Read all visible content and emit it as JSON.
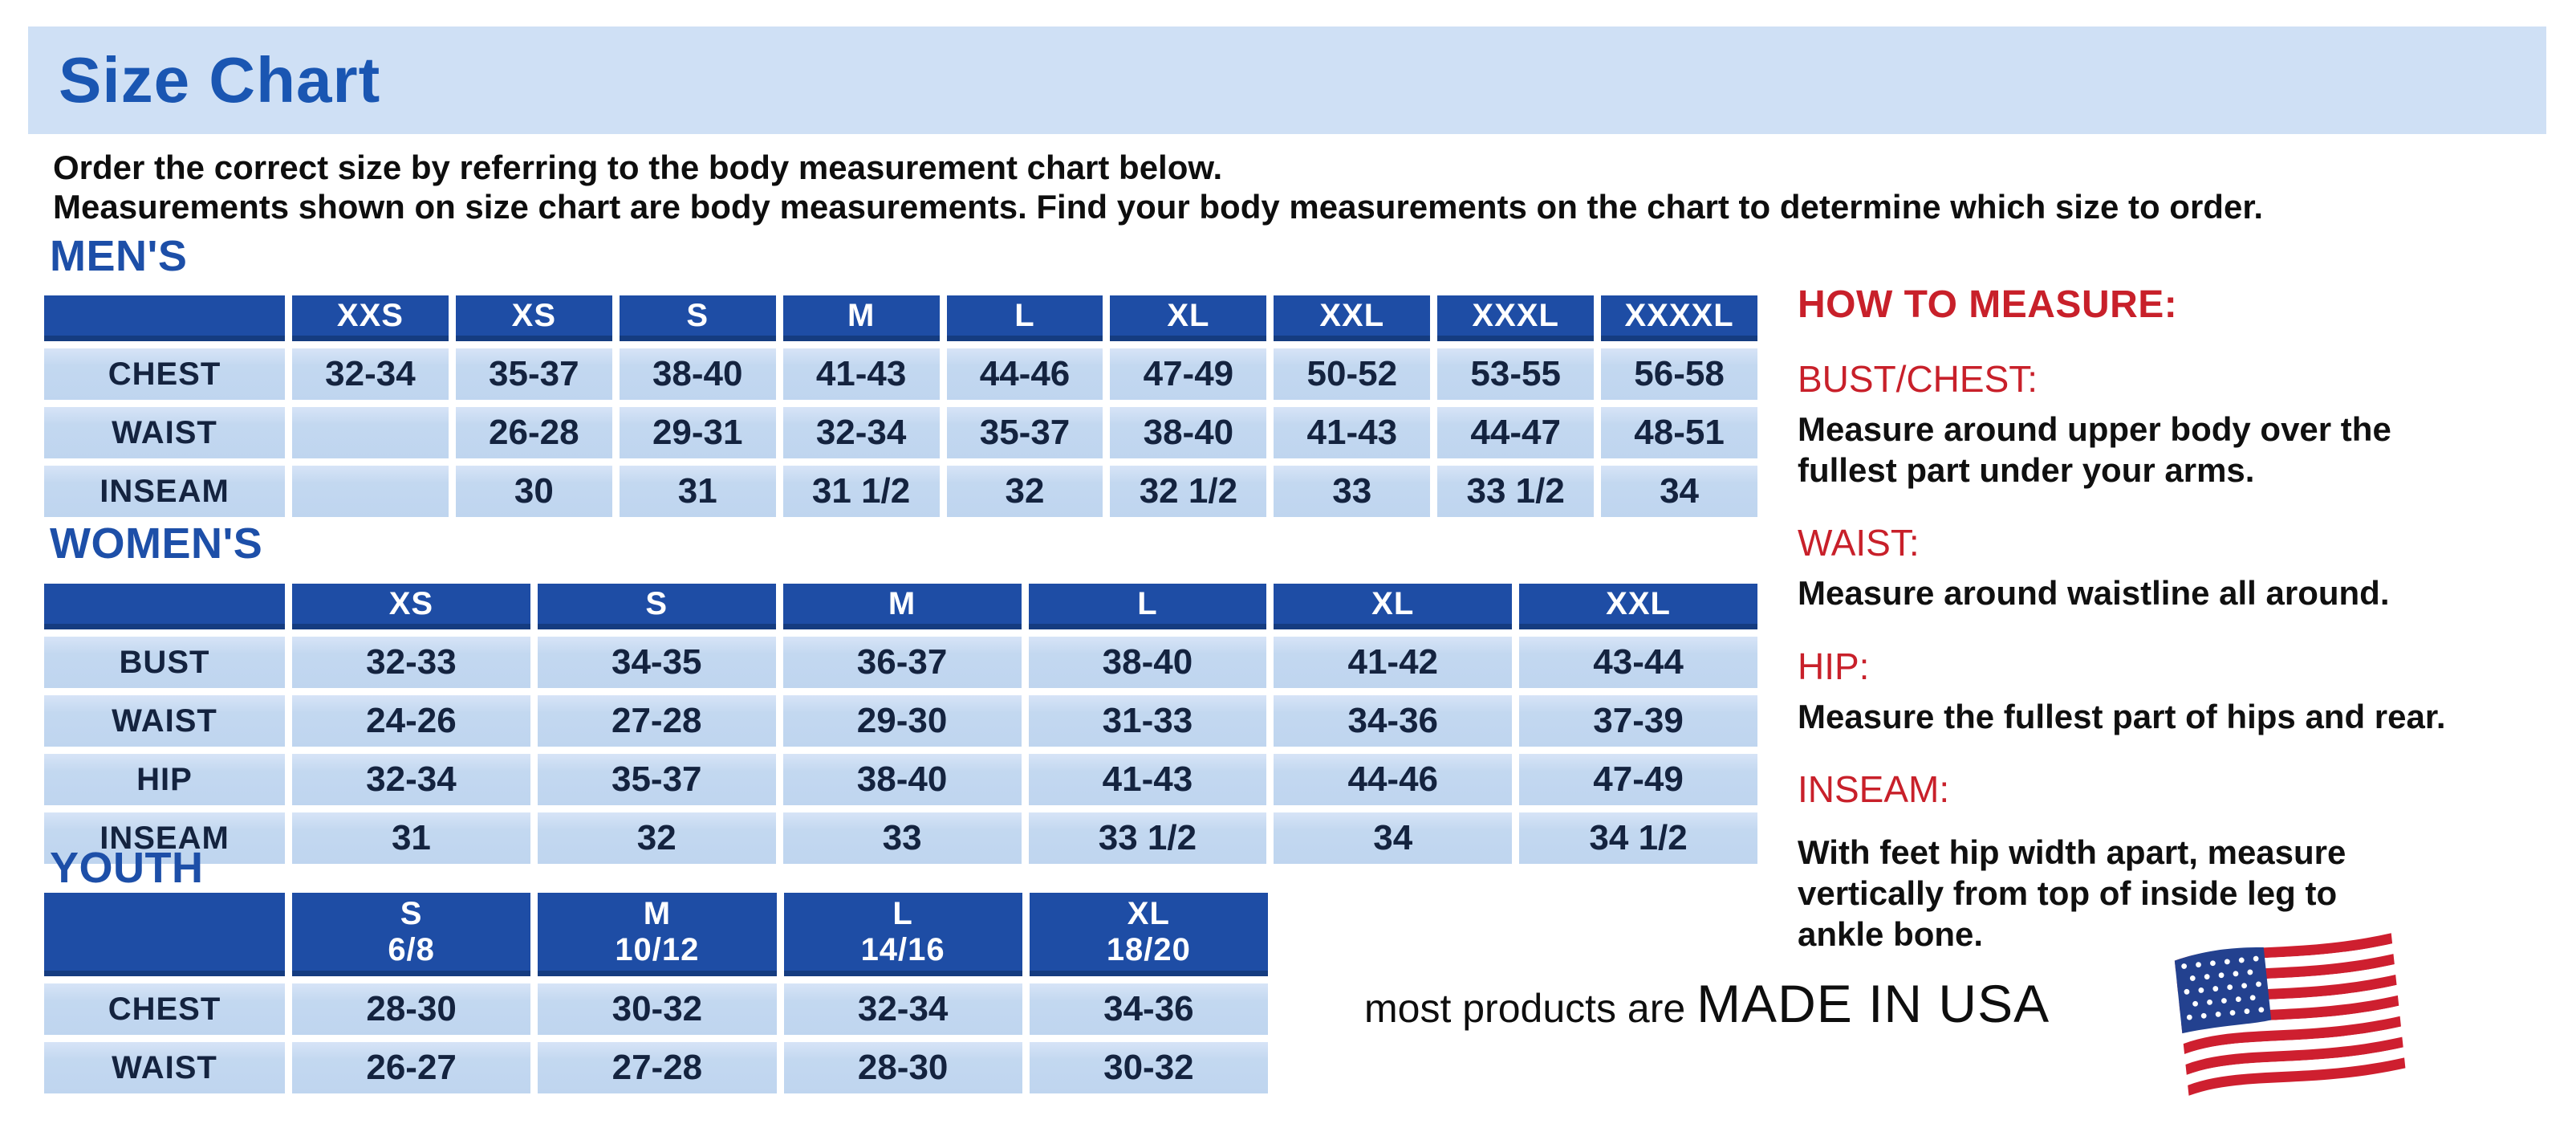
{
  "page": {
    "title": "Size Chart",
    "intro_line1": "Order the correct size by referring to the body measurement chart below.",
    "intro_line2": "Measurements shown on size chart are body measurements.  Find your body measurements on the chart to determine which size to order."
  },
  "colors": {
    "banner_bg": "#cfe0f5",
    "title_blue": "#1a56b2",
    "heading_blue": "#1d4fa8",
    "header_cell_blue": "#1e4da5",
    "cell_light_blue": "#c3d8f0",
    "cell_text_navy": "#14233f",
    "accent_red": "#c8202a"
  },
  "tables": {
    "mens": {
      "section_title": "MEN'S",
      "columns": [
        "",
        "XXS",
        "XS",
        "S",
        "M",
        "L",
        "XL",
        "XXL",
        "XXXL",
        "XXXXL"
      ],
      "rows": [
        {
          "label": "CHEST",
          "values": [
            "32-34",
            "35-37",
            "38-40",
            "41-43",
            "44-46",
            "47-49",
            "50-52",
            "53-55",
            "56-58"
          ]
        },
        {
          "label": "WAIST",
          "values": [
            "",
            "26-28",
            "29-31",
            "32-34",
            "35-37",
            "38-40",
            "41-43",
            "44-47",
            "48-51"
          ]
        },
        {
          "label": "INSEAM",
          "values": [
            "",
            "30",
            "31",
            "31 1/2",
            "32",
            "32 1/2",
            "33",
            "33 1/2",
            "34"
          ]
        }
      ]
    },
    "womens": {
      "section_title": "WOMEN'S",
      "columns": [
        "",
        "XS",
        "S",
        "M",
        "L",
        "XL",
        "XXL"
      ],
      "rows": [
        {
          "label": "BUST",
          "values": [
            "32-33",
            "34-35",
            "36-37",
            "38-40",
            "41-42",
            "43-44"
          ]
        },
        {
          "label": "WAIST",
          "values": [
            "24-26",
            "27-28",
            "29-30",
            "31-33",
            "34-36",
            "37-39"
          ]
        },
        {
          "label": "HIP",
          "values": [
            "32-34",
            "35-37",
            "38-40",
            "41-43",
            "44-46",
            "47-49"
          ]
        },
        {
          "label": "INSEAM",
          "values": [
            "31",
            "32",
            "33",
            "33 1/2",
            "34",
            "34 1/2"
          ]
        }
      ]
    },
    "youth": {
      "section_title": "YOUTH",
      "columns": [
        "",
        "S\n6/8",
        "M\n10/12",
        "L\n14/16",
        "XL\n18/20"
      ],
      "rows": [
        {
          "label": "CHEST",
          "values": [
            "28-30",
            "30-32",
            "32-34",
            "34-36"
          ]
        },
        {
          "label": "WAIST",
          "values": [
            "26-27",
            "27-28",
            "28-30",
            "30-32"
          ]
        }
      ]
    }
  },
  "how_to_measure": {
    "title": "HOW TO MEASURE:",
    "items": [
      {
        "label": "BUST/CHEST:",
        "text": "Measure around upper body over the\nfullest part under your arms."
      },
      {
        "label": "WAIST:",
        "text": "Measure around waistline all around."
      },
      {
        "label": "HIP:",
        "text": "Measure the fullest part of hips and rear."
      },
      {
        "label": "INSEAM:",
        "text": "With feet hip width apart, measure\nvertically from top of inside leg to\nankle bone."
      }
    ]
  },
  "footer": {
    "made_in_prefix": "most products are ",
    "made_in": "MADE IN USA",
    "flag_icon": "us-flag-icon",
    "flag_colors": {
      "red": "#ce1f2f",
      "blue": "#23418f",
      "white": "#ffffff"
    }
  }
}
